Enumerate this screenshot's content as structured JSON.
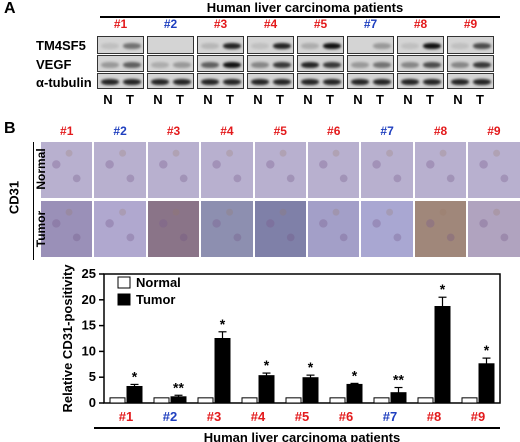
{
  "panel_a": {
    "letter": "A",
    "header": "Human liver carcinoma patients",
    "patients": [
      {
        "label": "#1",
        "color": "#e31a1c"
      },
      {
        "label": "#2",
        "color": "#1f3fbf"
      },
      {
        "label": "#3",
        "color": "#e31a1c"
      },
      {
        "label": "#4",
        "color": "#e31a1c"
      },
      {
        "label": "#5",
        "color": "#e31a1c"
      },
      {
        "label": "#7",
        "color": "#1f3fbf"
      },
      {
        "label": "#8",
        "color": "#e31a1c"
      },
      {
        "label": "#9",
        "color": "#e31a1c"
      }
    ],
    "rows": [
      "TM4SF5",
      "VEGF",
      "α-tubulin"
    ],
    "lane_n": "N",
    "lane_t": "T"
  },
  "panel_b": {
    "letter": "B",
    "stain_label": "CD31",
    "row_normal": "Normal",
    "row_tumor": "Tumor",
    "patients": [
      {
        "label": "#1",
        "color": "#e31a1c"
      },
      {
        "label": "#2",
        "color": "#1f3fbf"
      },
      {
        "label": "#3",
        "color": "#e31a1c"
      },
      {
        "label": "#4",
        "color": "#e31a1c"
      },
      {
        "label": "#5",
        "color": "#e31a1c"
      },
      {
        "label": "#6",
        "color": "#e31a1c"
      },
      {
        "label": "#7",
        "color": "#1f3fbf"
      },
      {
        "label": "#8",
        "color": "#e31a1c"
      },
      {
        "label": "#9",
        "color": "#e31a1c"
      }
    ]
  },
  "chart_data": {
    "type": "bar",
    "categories": [
      "#1",
      "#2",
      "#3",
      "#4",
      "#5",
      "#6",
      "#7",
      "#8",
      "#9"
    ],
    "category_colors": [
      "#e31a1c",
      "#1f3fbf",
      "#e31a1c",
      "#e31a1c",
      "#e31a1c",
      "#e31a1c",
      "#1f3fbf",
      "#e31a1c",
      "#e31a1c"
    ],
    "series": [
      {
        "name": "Normal",
        "values": [
          1,
          1,
          1,
          1,
          1,
          1,
          1,
          1,
          1
        ],
        "errors": [
          0,
          0,
          0,
          0,
          0,
          0,
          0,
          0,
          0
        ],
        "fill": "#ffffff"
      },
      {
        "name": "Tumor",
        "values": [
          3.2,
          1.2,
          12.5,
          5.3,
          4.9,
          3.6,
          2.0,
          18.7,
          7.6
        ],
        "errors": [
          0.4,
          0.3,
          1.3,
          0.5,
          0.5,
          0.2,
          1.0,
          1.8,
          1.1
        ],
        "fill": "#000000"
      }
    ],
    "significance": [
      "*",
      "**",
      "*",
      "*",
      "*",
      "*",
      "**",
      "*",
      "*"
    ],
    "ylabel": "Relative CD31-positivity",
    "xlabel": "Human liver carcinoma patients",
    "ylim": [
      0,
      25
    ],
    "yticks": [
      0,
      5,
      10,
      15,
      20,
      25
    ],
    "legend": "top-left",
    "grid": false
  }
}
